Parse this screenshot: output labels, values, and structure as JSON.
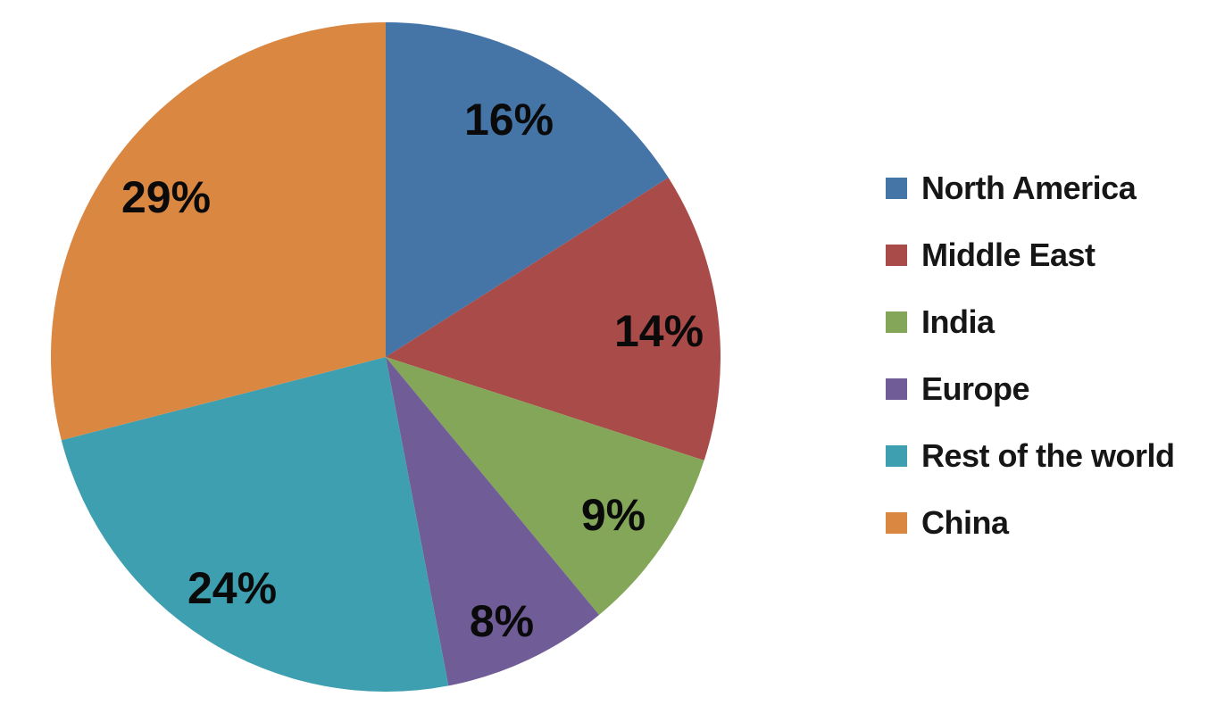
{
  "chart_data": {
    "type": "pie",
    "title": "",
    "start_angle_deg": 0,
    "direction": "clockwise",
    "legend_position": "right",
    "background_color": "#ffffff",
    "label_color": "#0a0a0a",
    "slices": [
      {
        "id": "north-america",
        "name": "North America",
        "value": 16,
        "label": "16%",
        "color": "#4575A7"
      },
      {
        "id": "middle-east",
        "name": "Middle East",
        "value": 14,
        "label": "14%",
        "color": "#A84B49"
      },
      {
        "id": "india",
        "name": "India",
        "value": 9,
        "label": "9%",
        "color": "#84A659"
      },
      {
        "id": "europe",
        "name": "Europe",
        "value": 8,
        "label": "8%",
        "color": "#705C96"
      },
      {
        "id": "rest-of-the-world",
        "name": "Rest of the world",
        "value": 24,
        "label": "24%",
        "color": "#3E9FB0"
      },
      {
        "id": "china",
        "name": "China",
        "value": 29,
        "label": "29%",
        "color": "#DA8742"
      }
    ]
  }
}
